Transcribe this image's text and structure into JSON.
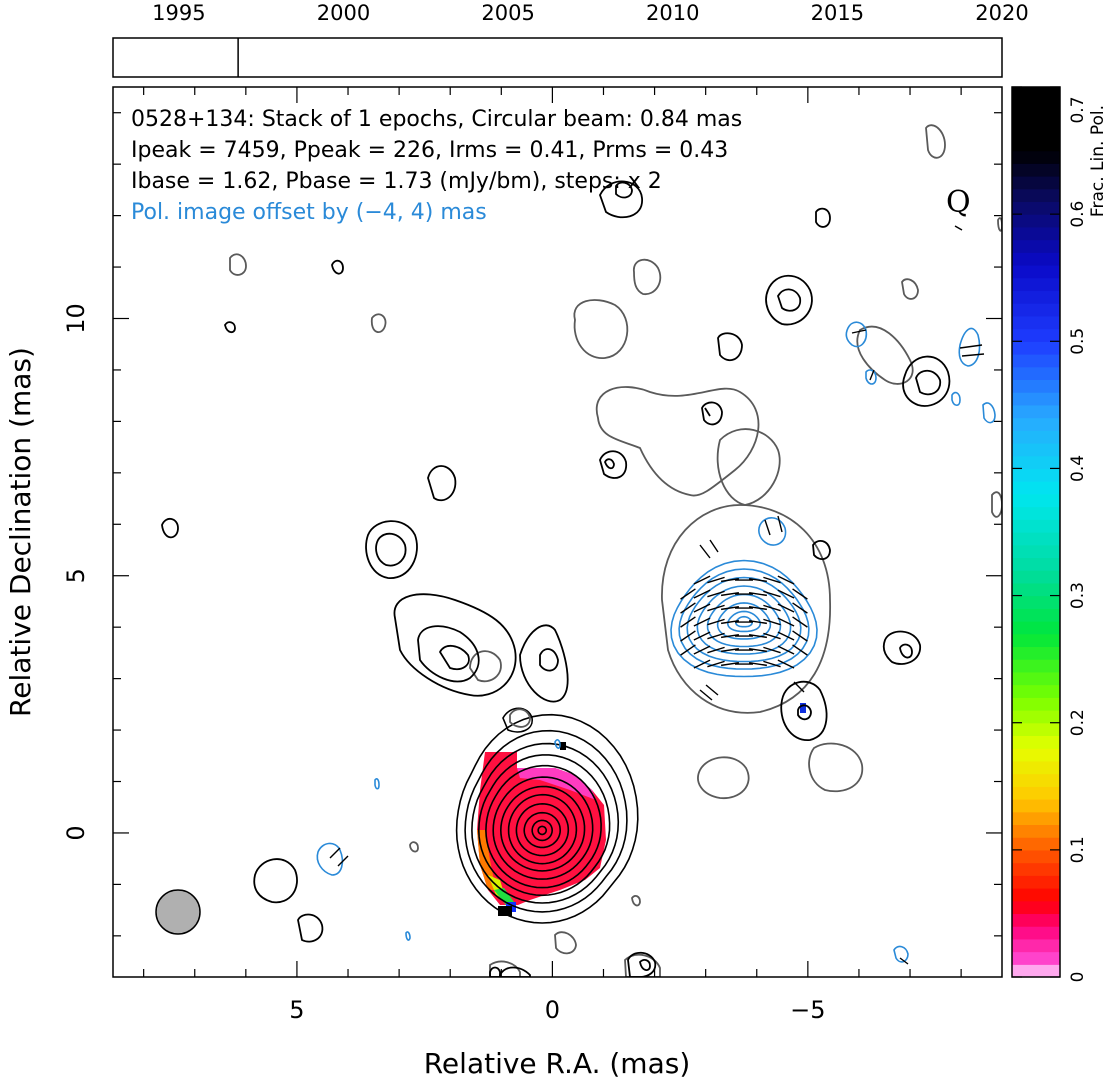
{
  "chart_data": {
    "type": "contour",
    "source": "0528+134",
    "annotations": [
      "0528+134: Stack of 1 epochs, Circular beam: 0.84 mas",
      "Ipeak = 7459, Ppeak = 226, Irms = 0.41, Prms = 0.43",
      "Ibase = 1.62, Pbase = 1.73 (mJy/bm), steps: x 2"
    ],
    "pol_offset_note": "Pol. image offset by (−4, 4) mas",
    "quality_mark": "Q",
    "xlabel": "Relative R.A. (mas)",
    "ylabel": "Relative Declination (mas)",
    "xlim": [
      8.6,
      -8.8
    ],
    "ylim": [
      -2.8,
      14.5
    ],
    "x_ticks": [
      5,
      0,
      -5
    ],
    "x_tick_labels": [
      "5",
      "0",
      "−5"
    ],
    "y_ticks": [
      0,
      5,
      10
    ],
    "y_tick_labels": [
      "0",
      "5",
      "10"
    ],
    "beam": {
      "x": 7.2,
      "y": -1.5,
      "diameter_mas": 0.84
    },
    "timeline": {
      "start_year": 1993,
      "end_year": 2020,
      "ticks": [
        1995,
        2000,
        2005,
        2010,
        2015,
        2020
      ],
      "tick_labels": [
        "1995",
        "2000",
        "2005",
        "2010",
        "2015",
        "2020"
      ],
      "epochs": [
        1996.8
      ]
    },
    "colorbar": {
      "label": "Frac. Lin. Pol.",
      "min": 0,
      "max": 0.7,
      "ticks": [
        0,
        0.1,
        0.2,
        0.3,
        0.4,
        0.5,
        0.6,
        0.7
      ],
      "tick_labels": [
        "0",
        "0.1",
        "0.2",
        "0.3",
        "0.4",
        "0.5",
        "0.6",
        "0.7"
      ]
    },
    "colors": {
      "stokes_i_contours": "#000000",
      "negative_contours": "#606060",
      "pol_contours": "#2a8ad8",
      "core_fill": "#ff1040",
      "beam_fill": "#b0b0b0"
    }
  }
}
